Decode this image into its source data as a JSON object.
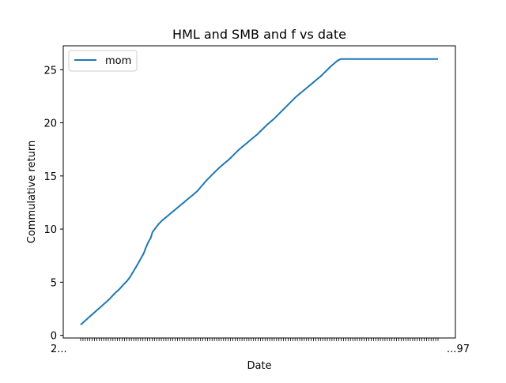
{
  "chart_data": {
    "type": "line",
    "title": "HML and SMB and f vs date",
    "xlabel": "Date",
    "ylabel": "Commulative return",
    "ylim": [
      -0.25,
      27.25
    ],
    "yticks": [
      0,
      5,
      10,
      15,
      20,
      25
    ],
    "grid": false,
    "legend_position": "upper-left",
    "xtick_count": 156,
    "xtick_first_label": "2...",
    "xtick_last_label": "...97",
    "series": [
      {
        "name": "mom",
        "color": "#1f77b4",
        "x": [
          0,
          6,
          12,
          18,
          24,
          30,
          36,
          42,
          48,
          54,
          58,
          62,
          66,
          70,
          73,
          76,
          79,
          82,
          85,
          88,
          90,
          92,
          95,
          98,
          102,
          106,
          110,
          114,
          118,
          122,
          126,
          130,
          134,
          138,
          142,
          146,
          150,
          154,
          158,
          162,
          166,
          170,
          174,
          178,
          182,
          186,
          190,
          194,
          198,
          202,
          206,
          210,
          214,
          218,
          222,
          226,
          230,
          234,
          238,
          242,
          246,
          250,
          254,
          258,
          262,
          266,
          270,
          274,
          278,
          282,
          286,
          290,
          294,
          298,
          302,
          306,
          310,
          314,
          318,
          322,
          326,
          330,
          334,
          338,
          342,
          346,
          350,
          354,
          358,
          362,
          366,
          370,
          374,
          378,
          382,
          386,
          390,
          394,
          398,
          402,
          406,
          410,
          414,
          418,
          422,
          426,
          430,
          434,
          438,
          442,
          446,
          448
        ],
        "values": [
          1.0,
          1.4,
          1.8,
          2.2,
          2.6,
          3.0,
          3.4,
          3.9,
          4.3,
          4.8,
          5.1,
          5.5,
          6.0,
          6.5,
          6.9,
          7.3,
          7.7,
          8.3,
          8.8,
          9.2,
          9.7,
          9.9,
          10.2,
          10.5,
          10.8,
          11.05,
          11.3,
          11.55,
          11.8,
          12.05,
          12.3,
          12.55,
          12.8,
          13.05,
          13.3,
          13.55,
          13.9,
          14.25,
          14.6,
          14.9,
          15.2,
          15.5,
          15.8,
          16.05,
          16.3,
          16.55,
          16.85,
          17.15,
          17.45,
          17.7,
          17.95,
          18.2,
          18.45,
          18.7,
          18.95,
          19.25,
          19.55,
          19.85,
          20.1,
          20.35,
          20.65,
          20.95,
          21.25,
          21.55,
          21.85,
          22.15,
          22.45,
          22.7,
          22.95,
          23.2,
          23.45,
          23.7,
          23.95,
          24.2,
          24.45,
          24.75,
          25.05,
          25.35,
          25.6,
          25.85,
          26.0,
          26.0,
          26.0,
          26.0,
          26.0,
          26.0,
          26.0,
          26.0,
          26.0,
          26.0,
          26.0,
          26.0,
          26.0,
          26.0,
          26.0,
          26.0,
          26.0,
          26.0,
          26.0,
          26.0,
          26.0,
          26.0,
          26.0,
          26.0,
          26.0,
          26.0,
          26.0,
          26.0,
          26.0,
          26.0,
          26.0,
          26.0
        ]
      }
    ]
  }
}
